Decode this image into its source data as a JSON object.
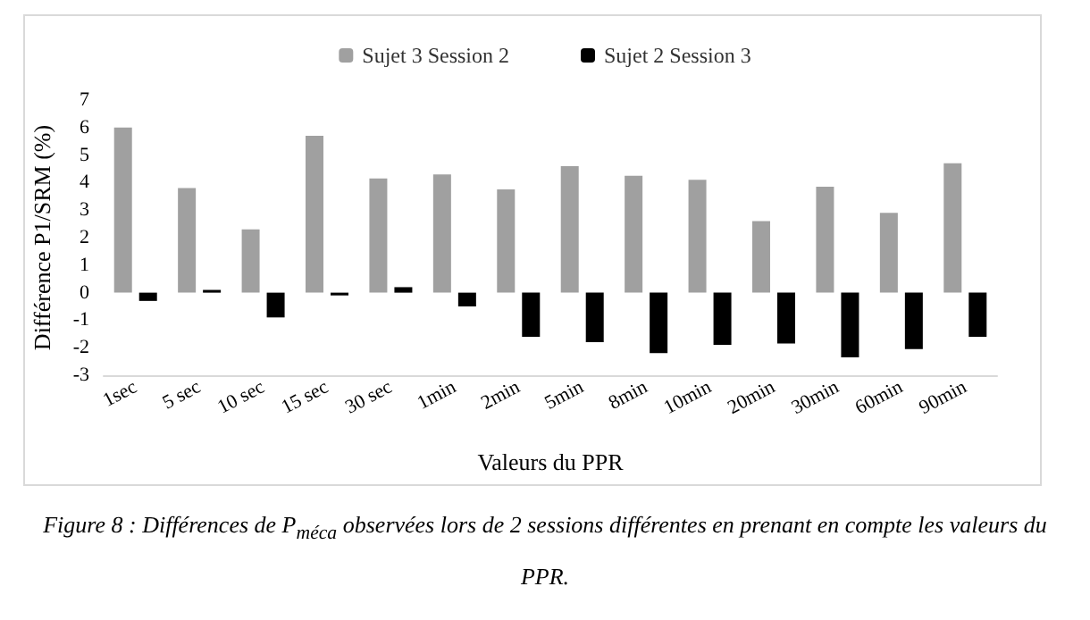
{
  "chart_data": {
    "type": "bar",
    "xlabel": "Valeurs du PPR",
    "ylabel": "Différence P1/SRM (%)",
    "categories": [
      "1sec",
      "5 sec",
      "10 sec",
      "15 sec",
      "30 sec",
      "1min",
      "2min",
      "5min",
      "8min",
      "10min",
      "20min",
      "30min",
      "60min",
      "90min"
    ],
    "series": [
      {
        "name": "Sujet 3 Session 2",
        "color": "#a0a0a0",
        "values": [
          6.0,
          3.8,
          2.3,
          5.7,
          4.15,
          4.3,
          3.75,
          4.6,
          4.25,
          4.1,
          2.6,
          3.85,
          2.9,
          4.7
        ]
      },
      {
        "name": "Sujet 2 Session 3",
        "color": "#000000",
        "values": [
          -0.3,
          0.1,
          -0.9,
          -0.1,
          0.2,
          -0.5,
          -1.6,
          -1.8,
          -2.2,
          -1.9,
          -1.85,
          -2.35,
          -2.05,
          -1.6
        ]
      }
    ],
    "ylim": [
      -3,
      7
    ],
    "yticks": [
      -3,
      -2,
      -1,
      0,
      1,
      2,
      3,
      4,
      5,
      6,
      7
    ],
    "grid": false,
    "legend": "top",
    "annotations": [
      "Figure 8 : Différences de P$_{méca}$ observées lors de 2 sessions différentes en prenant en compte les valeurs du PPR."
    ]
  }
}
